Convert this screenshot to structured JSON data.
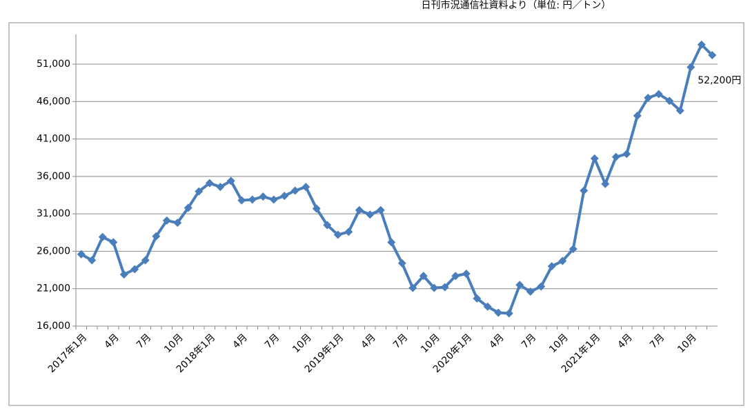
{
  "chart_data": {
    "type": "line",
    "title": "日刊市況通信社資料より（単位: 円／トン）",
    "categories": [
      "2017年1月",
      null,
      null,
      "4月",
      null,
      null,
      "7月",
      null,
      null,
      "10月",
      null,
      null,
      "2018年1月",
      null,
      null,
      "4月",
      null,
      null,
      "7月",
      null,
      null,
      "10月",
      null,
      null,
      "2019年1月",
      null,
      null,
      "4月",
      null,
      null,
      "7月",
      null,
      null,
      "10月",
      null,
      null,
      "2020年1月",
      null,
      null,
      "4月",
      null,
      null,
      "7月",
      null,
      null,
      "10月",
      null,
      null,
      "2021年1月",
      null,
      null,
      "4月",
      null,
      null,
      "7月",
      null,
      null,
      "10月",
      null,
      null
    ],
    "values": [
      25600,
      24800,
      27900,
      27200,
      22900,
      23600,
      24800,
      28000,
      30100,
      29800,
      31800,
      34000,
      35100,
      34600,
      35400,
      32800,
      32900,
      33300,
      32900,
      33400,
      34100,
      34600,
      31700,
      29500,
      28200,
      28600,
      31500,
      30900,
      31500,
      27200,
      24400,
      21100,
      22700,
      21100,
      21200,
      22700,
      23000,
      19700,
      18600,
      17800,
      17700,
      21500,
      20600,
      21300,
      24000,
      24700,
      26300,
      34100,
      38400,
      35000,
      38600,
      39000,
      44100,
      46500,
      47000,
      46100,
      44800,
      50600,
      53600,
      52200
    ],
    "value_labels": [
      null,
      null,
      null,
      null,
      null,
      null,
      null,
      null,
      null,
      null,
      null,
      null,
      null,
      null,
      null,
      null,
      null,
      null,
      null,
      null,
      null,
      null,
      null,
      null,
      null,
      null,
      null,
      null,
      null,
      null,
      null,
      null,
      null,
      null,
      null,
      null,
      null,
      null,
      null,
      null,
      null,
      null,
      null,
      null,
      null,
      null,
      null,
      null,
      null,
      null,
      null,
      null,
      null,
      null,
      null,
      null,
      null,
      null,
      null,
      "52,200円"
    ],
    "color": "#4a7ebb",
    "ylim": [
      16000,
      55000
    ],
    "yticks": [
      {
        "value": 16000,
        "label": "16,000"
      },
      {
        "value": 21000,
        "label": "21,000"
      },
      {
        "value": 26000,
        "label": "26,000"
      },
      {
        "value": 31000,
        "label": "31,000"
      },
      {
        "value": 36000,
        "label": "36,000"
      },
      {
        "value": 41000,
        "label": "41,000"
      },
      {
        "value": 46000,
        "label": "46,000"
      },
      {
        "value": 51000,
        "label": "51,000"
      }
    ],
    "grid": true
  }
}
